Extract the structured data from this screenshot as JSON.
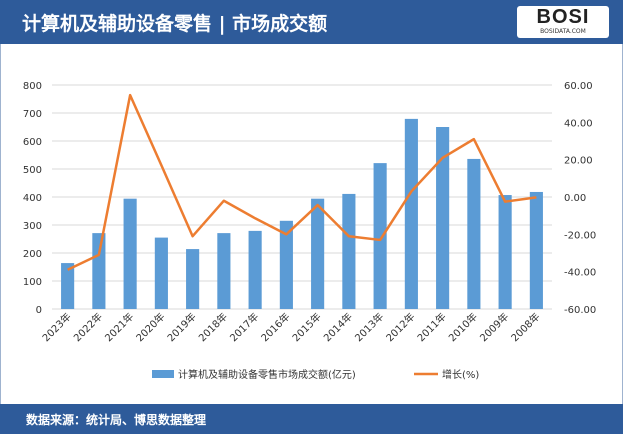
{
  "header": {
    "title": "计算机及辅助设备零售 | 市场成交额",
    "logo_text": "BOSI",
    "logo_sub": "BOSIDATA.COM"
  },
  "footer": {
    "source": "数据来源：统计局、博思数据整理"
  },
  "colors": {
    "bar": "#5b9bd5",
    "line": "#ed7d31",
    "header": "#2e5b9a"
  },
  "chart_data": {
    "type": "bar+line",
    "categories": [
      "2023年",
      "2022年",
      "2021年",
      "2020年",
      "2019年",
      "2018年",
      "2017年",
      "2016年",
      "2015年",
      "2014年",
      "2013年",
      "2012年",
      "2011年",
      "2010年",
      "2009年",
      "2008年"
    ],
    "series": [
      {
        "name": "计算机及辅助设备零售市场成交额(亿元)",
        "type": "bar",
        "axis": "left",
        "values": [
          164,
          271,
          394,
          255,
          214,
          271,
          279,
          315,
          394,
          411,
          521,
          679,
          650,
          536,
          407,
          418
        ]
      },
      {
        "name": "增长(%)",
        "type": "line",
        "axis": "right",
        "values": [
          -39,
          -31,
          54.6,
          17,
          -21,
          -2,
          -11.4,
          -20,
          -4.3,
          -21,
          -23,
          3,
          21,
          31,
          -2.5,
          -0.2
        ]
      }
    ],
    "y_left": {
      "range": [
        0,
        800
      ],
      "ticks": [
        "0",
        "100",
        "200",
        "300",
        "400",
        "500",
        "600",
        "700",
        "800"
      ]
    },
    "y_right": {
      "range": [
        -60,
        60
      ],
      "ticks": [
        "-60.00",
        "-40.00",
        "-20.00",
        "0.00",
        "20.00",
        "40.00",
        "60.00"
      ]
    },
    "grid": true,
    "legend": "bottom"
  }
}
